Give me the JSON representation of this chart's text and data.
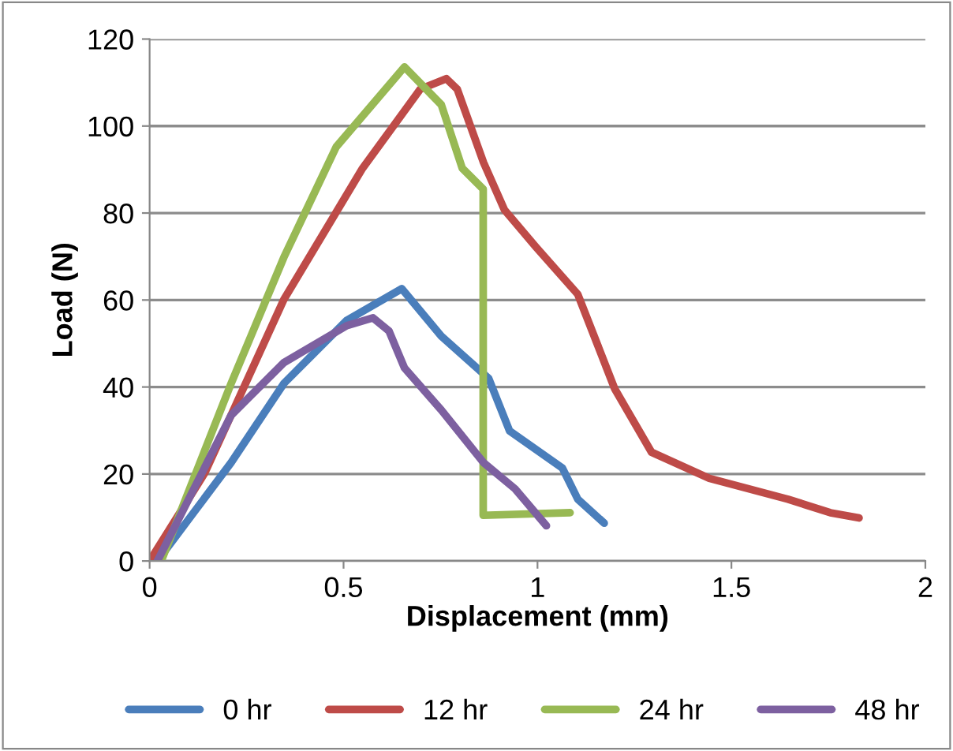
{
  "chart_data": {
    "type": "line",
    "xlabel": "Displacement (mm)",
    "ylabel": "Load (N)",
    "xlim": [
      0,
      2
    ],
    "ylim": [
      0,
      120
    ],
    "xticks": [
      0,
      0.5,
      1,
      1.5,
      2
    ],
    "yticks": [
      0,
      20,
      40,
      60,
      80,
      100,
      120
    ],
    "grid": "y",
    "legend": "bottom",
    "marker": "none",
    "line_style": "solid",
    "series": [
      {
        "name": "0 hr",
        "color": "#4a7ebb",
        "x": [
          0.02,
          0.21,
          0.346,
          0.508,
          0.65,
          0.752,
          0.874,
          0.928,
          1.064,
          1.104,
          1.172
        ],
        "values": [
          0,
          22.6,
          40.8,
          55.3,
          62.6,
          51.7,
          42.0,
          29.9,
          21.4,
          14.2,
          8.7
        ]
      },
      {
        "name": "12 hr",
        "color": "#be4b48",
        "x": [
          0.0,
          0.142,
          0.346,
          0.549,
          0.698,
          0.765,
          0.793,
          0.861,
          0.915,
          0.996,
          1.104,
          1.199,
          1.294,
          1.443,
          1.646,
          1.755,
          1.829
        ],
        "values": [
          0,
          20.2,
          60.1,
          90.3,
          108.5,
          110.9,
          108.5,
          91.6,
          80.7,
          72.2,
          61.3,
          39.6,
          25.0,
          19.0,
          14.2,
          11.1,
          9.9
        ]
      },
      {
        "name": "24 hr",
        "color": "#98b954",
        "x": [
          0.03,
          0.21,
          0.346,
          0.481,
          0.657,
          0.752,
          0.806,
          0.86,
          0.86,
          1.084
        ],
        "values": [
          0,
          40.8,
          69.8,
          95.2,
          113.6,
          104.9,
          90.3,
          85.5,
          10.5,
          11.1
        ]
      },
      {
        "name": "48 hr",
        "color": "#7d60a0",
        "x": [
          0.02,
          0.21,
          0.346,
          0.508,
          0.576,
          0.617,
          0.657,
          0.752,
          0.861,
          0.942,
          1.023
        ],
        "values": [
          0,
          33.5,
          45.6,
          54.1,
          55.9,
          52.9,
          44.4,
          34.7,
          22.6,
          16.6,
          8.1
        ]
      }
    ]
  }
}
